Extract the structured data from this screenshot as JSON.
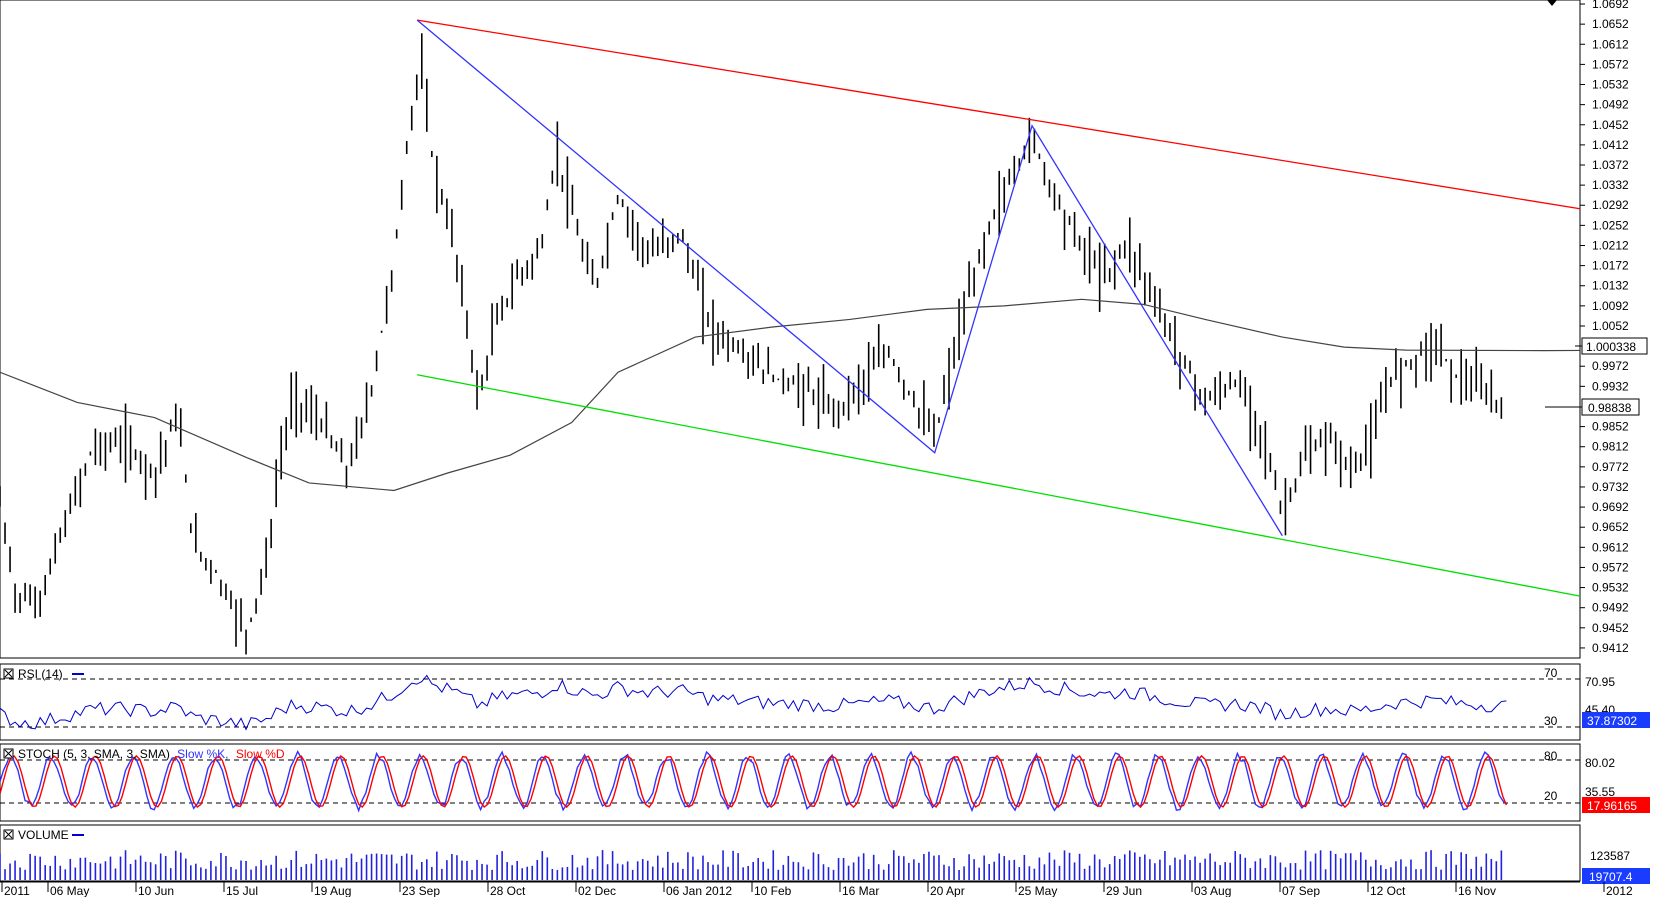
{
  "chart_data": [
    {
      "type": "bar",
      "name": "price",
      "ohlc": true,
      "price_ticks": [
        "1.0692",
        "1.0652",
        "1.0612",
        "1.0572",
        "1.0532",
        "1.0492",
        "1.0452",
        "1.0412",
        "1.0372",
        "1.0332",
        "1.0292",
        "1.0252",
        "1.0212",
        "1.0172",
        "1.0132",
        "1.0092",
        "1.0052",
        "0.9972",
        "0.9932",
        "0.9852",
        "0.9812",
        "0.9772",
        "0.9732",
        "0.9692",
        "0.9652",
        "0.9612",
        "0.9572",
        "0.9532",
        "0.9492",
        "0.9452",
        "0.9412"
      ],
      "ylim": [
        0.9392,
        1.07
      ],
      "ma_label": "1.000338",
      "ma_value": 1.000338,
      "last_label": "0.98838",
      "last_value": 0.98838,
      "date_labels": [
        "2011",
        "06 May",
        "10 Jun",
        "15 Jul",
        "19 Aug",
        "23 Sep",
        "28 Oct",
        "02 Dec",
        "06 Jan 2012",
        "10 Feb",
        "16 Mar",
        "20 Apr",
        "25 May",
        "29 Jun",
        "03 Aug",
        "07 Sep",
        "12 Oct",
        "16 Nov",
        "2012"
      ],
      "trendlines": [
        {
          "color": "#ff0000",
          "from": [
            0.27,
            1.066
          ],
          "to": [
            1.0,
            1.0285
          ]
        },
        {
          "color": "#00e000",
          "from": [
            0.27,
            0.9955
          ],
          "to": [
            1.0,
            0.9515
          ]
        }
      ],
      "zigzag": [
        [
          0.27,
          1.066
        ],
        [
          0.605,
          0.98
        ],
        [
          0.668,
          1.045
        ],
        [
          0.83,
          0.9635
        ]
      ],
      "ma_path": [
        [
          0.0,
          0.996
        ],
        [
          0.05,
          0.99
        ],
        [
          0.1,
          0.987
        ],
        [
          0.16,
          0.979
        ],
        [
          0.2,
          0.974
        ],
        [
          0.255,
          0.9725
        ],
        [
          0.29,
          0.976
        ],
        [
          0.33,
          0.9795
        ],
        [
          0.37,
          0.986
        ],
        [
          0.4,
          0.996
        ],
        [
          0.45,
          1.003
        ],
        [
          0.5,
          1.005
        ],
        [
          0.55,
          1.0065
        ],
        [
          0.6,
          1.0085
        ],
        [
          0.65,
          1.0092
        ],
        [
          0.7,
          1.0105
        ],
        [
          0.74,
          1.0095
        ],
        [
          0.78,
          1.0065
        ],
        [
          0.83,
          1.003
        ],
        [
          0.87,
          1.001
        ],
        [
          0.91,
          1.0004
        ],
        [
          1.0,
          1.0003
        ]
      ],
      "price_path": [
        [
          0.0,
          0.97
        ],
        [
          0.01,
          0.952
        ],
        [
          0.025,
          0.95
        ],
        [
          0.04,
          0.964
        ],
        [
          0.06,
          0.981
        ],
        [
          0.08,
          0.982
        ],
        [
          0.1,
          0.976
        ],
        [
          0.115,
          0.988
        ],
        [
          0.125,
          0.962
        ],
        [
          0.14,
          0.956
        ],
        [
          0.16,
          0.944
        ],
        [
          0.175,
          0.962
        ],
        [
          0.18,
          0.977
        ],
        [
          0.19,
          0.991
        ],
        [
          0.21,
          0.985
        ],
        [
          0.225,
          0.976
        ],
        [
          0.24,
          0.992
        ],
        [
          0.255,
          1.018
        ],
        [
          0.265,
          1.045
        ],
        [
          0.272,
          1.058
        ],
        [
          0.28,
          1.038
        ],
        [
          0.295,
          1.02
        ],
        [
          0.31,
          0.99
        ],
        [
          0.32,
          1.005
        ],
        [
          0.335,
          1.015
        ],
        [
          0.35,
          1.02
        ],
        [
          0.36,
          1.04
        ],
        [
          0.375,
          1.022
        ],
        [
          0.385,
          1.012
        ],
        [
          0.4,
          1.031
        ],
        [
          0.42,
          1.019
        ],
        [
          0.44,
          1.024
        ],
        [
          0.46,
          1.005
        ],
        [
          0.48,
          1.0
        ],
        [
          0.5,
          0.995
        ],
        [
          0.52,
          0.993
        ],
        [
          0.54,
          0.988
        ],
        [
          0.56,
          0.995
        ],
        [
          0.575,
          1.0
        ],
        [
          0.59,
          0.991
        ],
        [
          0.605,
          0.983
        ],
        [
          0.62,
          1.003
        ],
        [
          0.64,
          1.025
        ],
        [
          0.655,
          1.035
        ],
        [
          0.668,
          1.043
        ],
        [
          0.68,
          1.033
        ],
        [
          0.7,
          1.021
        ],
        [
          0.715,
          1.015
        ],
        [
          0.73,
          1.022
        ],
        [
          0.745,
          1.012
        ],
        [
          0.76,
          1.002
        ],
        [
          0.78,
          0.99
        ],
        [
          0.8,
          0.994
        ],
        [
          0.815,
          0.986
        ],
        [
          0.83,
          0.968
        ],
        [
          0.845,
          0.979
        ],
        [
          0.86,
          0.983
        ],
        [
          0.875,
          0.976
        ],
        [
          0.89,
          0.984
        ],
        [
          0.9,
          0.995
        ],
        [
          0.915,
          0.999
        ],
        [
          0.93,
          1.002
        ],
        [
          0.94,
          0.996
        ],
        [
          0.955,
          0.993
        ],
        [
          0.965,
          0.991
        ],
        [
          0.975,
          0.9884
        ]
      ]
    },
    {
      "type": "line",
      "name": "rsi",
      "title": "RSI (14)",
      "levels": [
        70,
        30
      ],
      "tick_labels": [
        "70",
        "70.95",
        "45.40",
        "30"
      ],
      "last_label": "37.87302",
      "last_value": 37.87302,
      "ylim": [
        20,
        80
      ]
    },
    {
      "type": "line",
      "name": "stoch",
      "title_prefix": "STOCH (5, 3, SMA, 3, SMA)",
      "k_label": "Slow %K,",
      "d_label": "Slow %D",
      "levels": [
        80,
        20
      ],
      "tick_labels": [
        "80",
        "80.02",
        "35.55",
        "20"
      ],
      "last_label": "17.96165",
      "last_value": 17.96165,
      "ylim": [
        0,
        100
      ]
    },
    {
      "type": "bar",
      "name": "volume",
      "title": "VOLUME",
      "tick_labels": [
        "123587"
      ],
      "last_label": "19707.4",
      "last_value": 19707.4
    }
  ],
  "colors": {
    "red_channel": "#ff0000",
    "green_channel": "#00e000",
    "zigzag": "#3333ff",
    "rsi": "#0000cc",
    "stoch_k": "#3333ff",
    "stoch_d": "#ff0000",
    "volume": "#2222dd",
    "ma": "#444444",
    "rsi_badge": "#1a3cff",
    "stoch_badge": "#ff0000",
    "volume_badge": "#1a3cff"
  },
  "icons": [
    "collapse-arrow-icon",
    "panel-checkbox-icon"
  ]
}
